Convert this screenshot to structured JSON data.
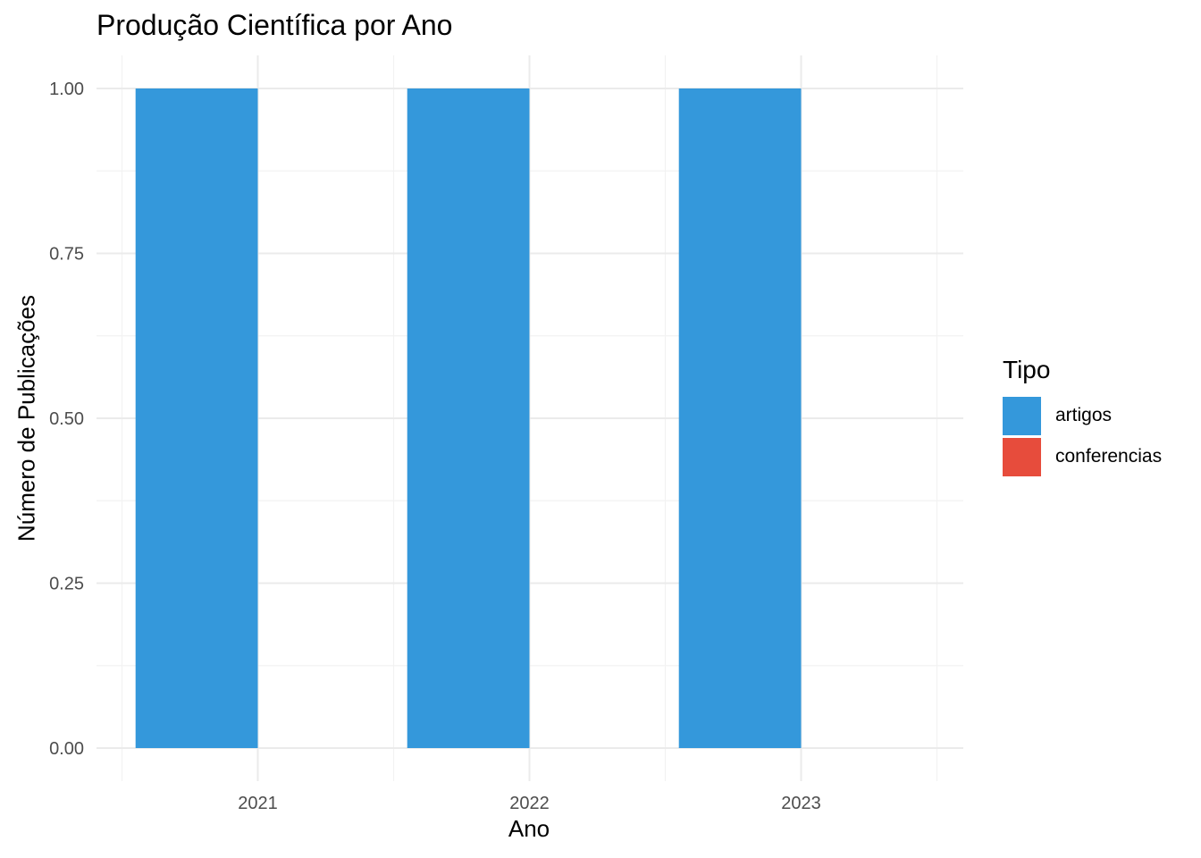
{
  "chart_data": {
    "type": "bar",
    "title": "Produção Científica por Ano",
    "xlabel": "Ano",
    "ylabel": "Número de Publicações",
    "categories": [
      "2021",
      "2022",
      "2023"
    ],
    "series": [
      {
        "name": "artigos",
        "color": "#3498db",
        "values": [
          1,
          1,
          1
        ]
      },
      {
        "name": "conferencias",
        "color": "#e74c3c",
        "values": [
          0,
          0,
          0
        ]
      }
    ],
    "ylim": [
      0,
      1
    ],
    "yticks": [
      "0.00",
      "0.25",
      "0.50",
      "0.75",
      "1.00"
    ],
    "grid": true,
    "legend": {
      "title": "Tipo",
      "placement": "right",
      "items": [
        {
          "label": "artigos",
          "color": "#3498db"
        },
        {
          "label": "conferencias",
          "color": "#e74c3c"
        }
      ]
    }
  }
}
